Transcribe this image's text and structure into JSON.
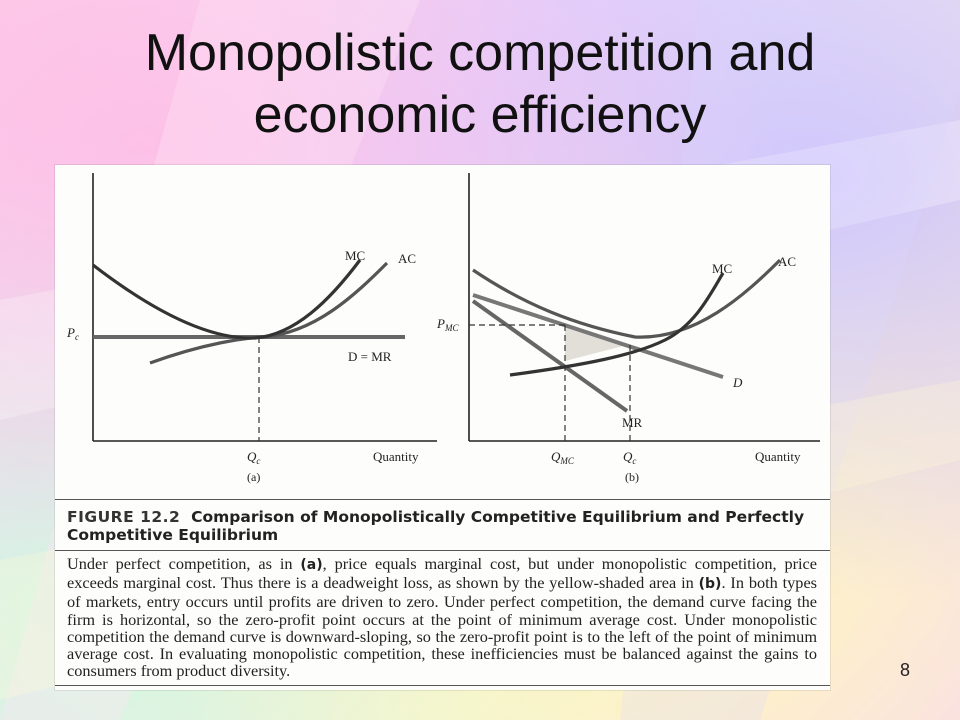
{
  "slide": {
    "title_line1": "Monopolistic competition and",
    "title_line2": "economic efficiency",
    "page_number": "8"
  },
  "figure": {
    "panel_a": {
      "mc_label": "MC",
      "ac_label": "AC",
      "price_label": "P",
      "price_sub": "c",
      "demand_label": "D = MR",
      "qty_label": "Q",
      "qty_sub": "c",
      "axis_label": "Quantity",
      "panel_label": "(a)"
    },
    "panel_b": {
      "mc_label": "MC",
      "ac_label": "AC",
      "price_label": "P",
      "price_sub": "MC",
      "demand_label": "D",
      "mr_label": "MR",
      "qmc_label": "Q",
      "qmc_sub": "MC",
      "qc_label": "Q",
      "qc_sub": "c",
      "axis_label": "Quantity",
      "panel_label": "(b)"
    },
    "heading_number": "FIGURE 12.2",
    "heading_text": "Comparison of Monopolistically Competitive Equilibrium and Perfectly Competitive Equilibrium",
    "caption_parts": {
      "p1": "Under perfect competition, as in ",
      "a": "(a)",
      "p2": ", price equals marginal cost, but under monopolistic competition, price exceeds marginal cost. Thus there is a deadweight loss, as shown by the yellow-shaded area in ",
      "b": "(b)",
      "p3": ". In both types of markets, entry occurs until profits are driven to zero. Under perfect competition, the demand curve facing the firm is horizontal, so the zero-profit point occurs at the point of minimum average cost. Under monopolistic competition the demand curve is downward-sloping, so the zero-profit point is to the left of the point of minimum average cost. In evaluating monopolistic competition, these inefficiencies must be balanced against the gains to consumers from product diversity."
    }
  }
}
